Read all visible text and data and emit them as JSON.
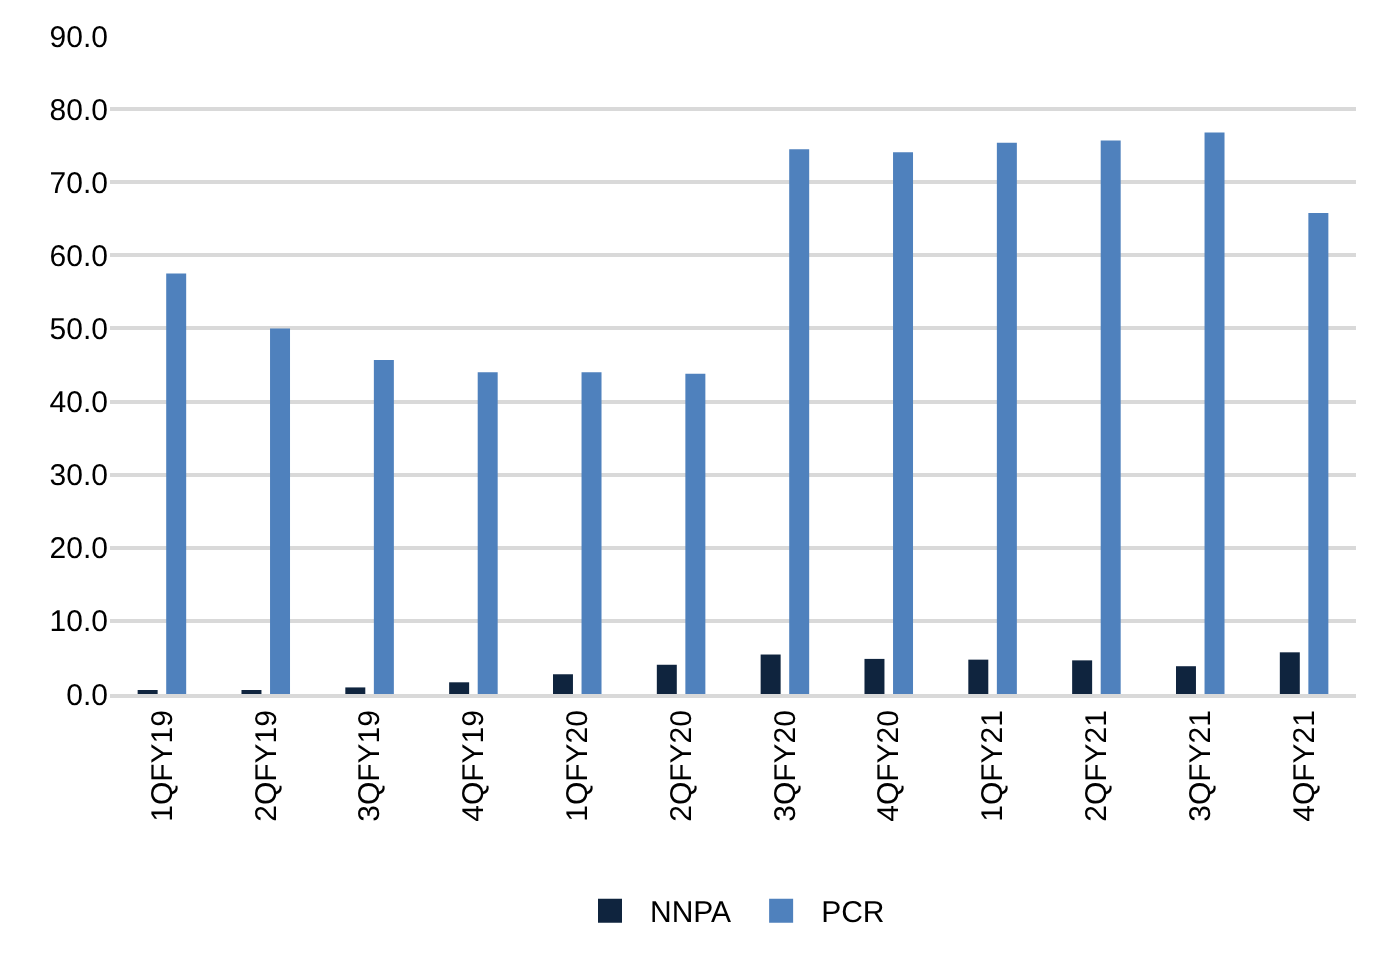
{
  "chart_data": {
    "type": "bar",
    "categories": [
      "1QFY19",
      "2QFY19",
      "3QFY19",
      "4QFY19",
      "1QFY20",
      "2QFY20",
      "3QFY20",
      "4QFY20",
      "1QFY21",
      "2QFY21",
      "3QFY21",
      "4QFY21"
    ],
    "series": [
      {
        "name": "NNPA",
        "color": "#0f243e",
        "values": [
          0.3,
          0.5,
          0.9,
          1.6,
          2.7,
          4.0,
          5.4,
          4.8,
          4.7,
          4.6,
          3.8,
          5.7
        ]
      },
      {
        "name": "PCR",
        "color": "#4f81bd",
        "values": [
          57.5,
          50.0,
          45.7,
          44.0,
          44.0,
          43.8,
          74.5,
          74.1,
          75.4,
          75.7,
          76.8,
          65.8
        ]
      }
    ],
    "ylim": [
      0,
      90
    ],
    "yticks": [
      {
        "value": 0,
        "label": "0.0"
      },
      {
        "value": 10,
        "label": "10.0"
      },
      {
        "value": 20,
        "label": "20.0"
      },
      {
        "value": 30,
        "label": "30.0"
      },
      {
        "value": 40,
        "label": "40.0"
      },
      {
        "value": 50,
        "label": "50.0"
      },
      {
        "value": 60,
        "label": "60.0"
      },
      {
        "value": 70,
        "label": "70.0"
      },
      {
        "value": 80,
        "label": "80.0"
      },
      {
        "value": 90,
        "label": "90.0"
      }
    ],
    "grid": "y",
    "legend": "bottom"
  }
}
